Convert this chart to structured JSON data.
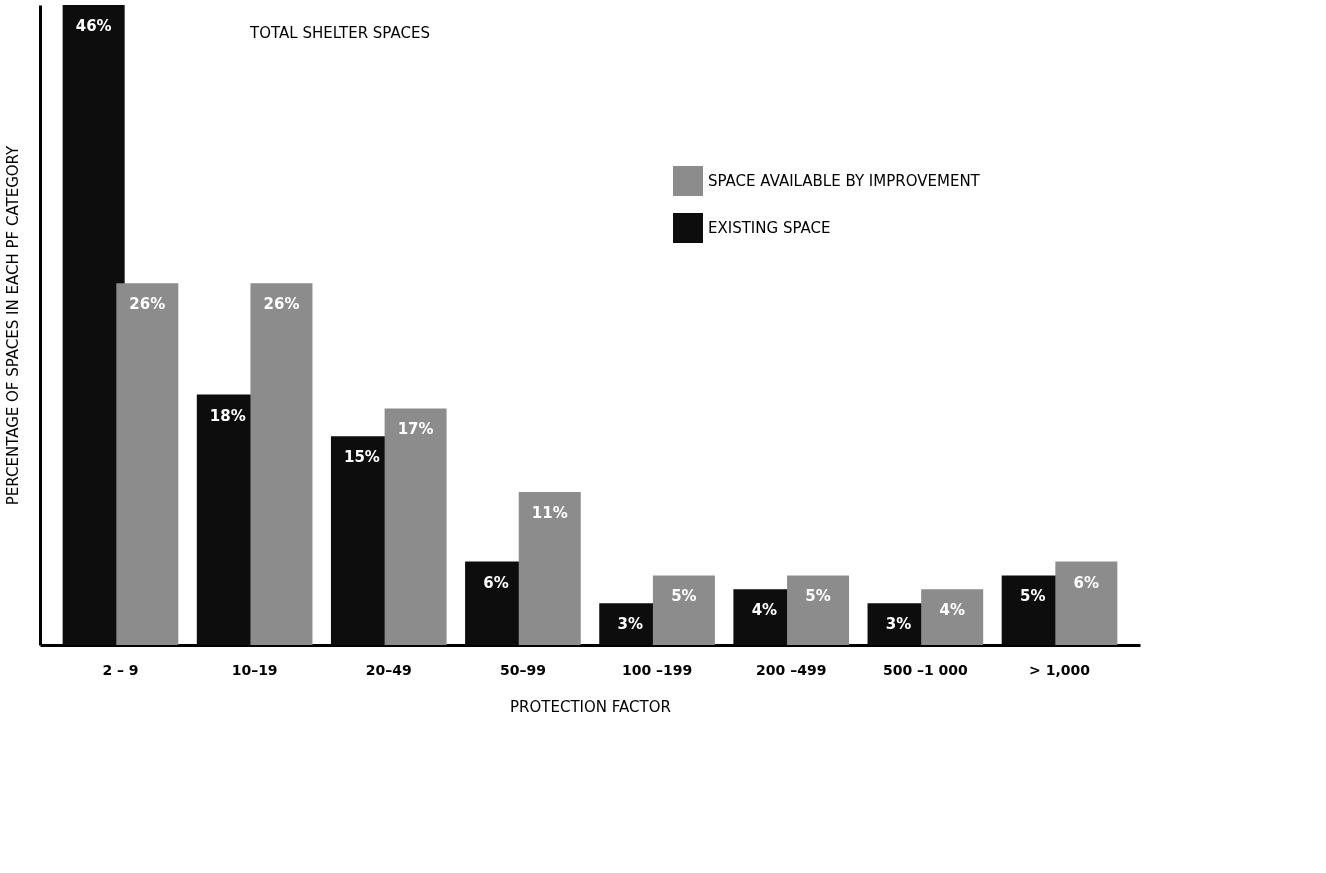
{
  "chart_data": {
    "type": "bar",
    "title": "TOTAL SHELTER SPACES",
    "xlabel": "PROTECTION FACTOR",
    "ylabel": "PERCENTAGE OF SPACES IN EACH PF CATEGORY",
    "categories": [
      "2 – 9",
      "10–19",
      "20–49",
      "50–99",
      "100 –199",
      "200 –499",
      "500 –1 000",
      "> 1,000"
    ],
    "series": [
      {
        "name": "EXISTING SPACE",
        "color": "#0d0d0d",
        "values": [
          46,
          18,
          15,
          6,
          3,
          4,
          3,
          5
        ],
        "value_labels": [
          "46%",
          "18%",
          "15%",
          "6%",
          "3%",
          "4%",
          "3%",
          "5%"
        ]
      },
      {
        "name": "SPACE AVAILABLE BY IMPROVEMENT",
        "color": "#8c8c8c",
        "values": [
          26,
          26,
          17,
          11,
          5,
          5,
          4,
          6
        ],
        "value_labels": [
          "26%",
          "26%",
          "17%",
          "11%",
          "5%",
          "5%",
          "4%",
          "6%"
        ]
      }
    ],
    "legend": "top right",
    "tick_labels": "x",
    "grid": false
  }
}
